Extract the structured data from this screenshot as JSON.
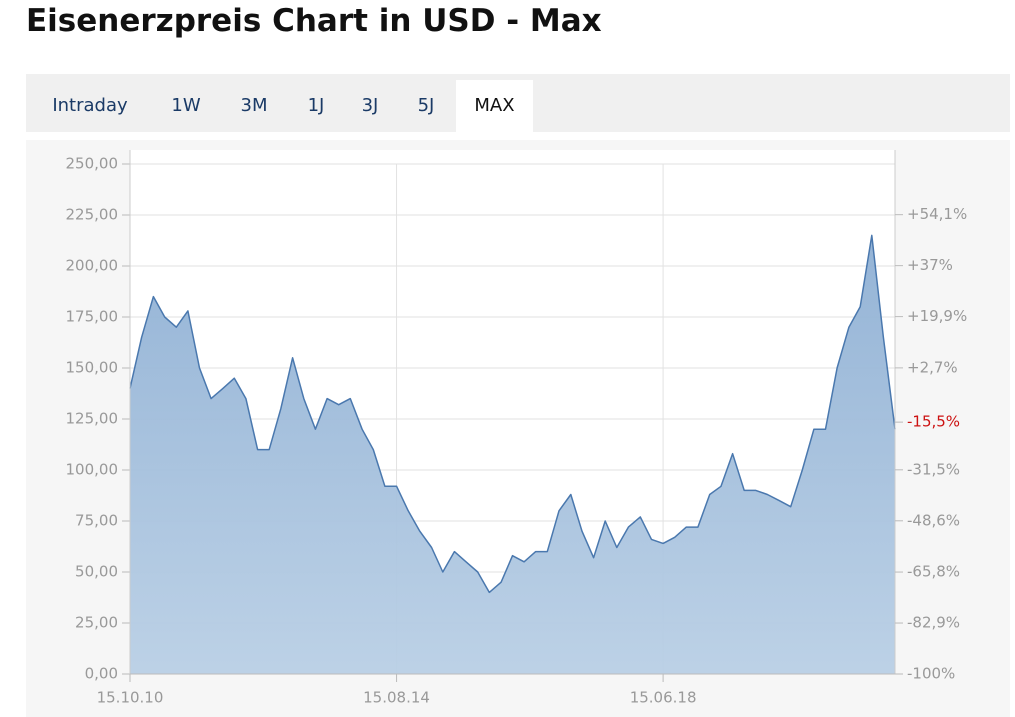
{
  "title": "Eisenerzpreis Chart in USD - Max",
  "tabs": [
    "Intraday",
    "1W",
    "3M",
    "1J",
    "3J",
    "5J",
    "MAX"
  ],
  "active_tab": 6,
  "chart_data": {
    "type": "area",
    "x": [
      "2010-10-15",
      "2010-12-15",
      "2011-02-15",
      "2011-04-15",
      "2011-06-15",
      "2011-08-15",
      "2011-10-15",
      "2011-12-15",
      "2012-02-15",
      "2012-04-15",
      "2012-06-15",
      "2012-08-15",
      "2012-10-15",
      "2012-12-15",
      "2013-02-15",
      "2013-04-15",
      "2013-06-15",
      "2013-08-15",
      "2013-10-15",
      "2013-12-15",
      "2014-02-15",
      "2014-04-15",
      "2014-06-15",
      "2014-08-15",
      "2014-10-15",
      "2014-12-15",
      "2015-02-15",
      "2015-04-15",
      "2015-06-15",
      "2015-08-15",
      "2015-10-15",
      "2015-12-15",
      "2016-02-15",
      "2016-04-15",
      "2016-06-15",
      "2016-08-15",
      "2016-10-15",
      "2016-12-15",
      "2017-02-15",
      "2017-04-15",
      "2017-06-15",
      "2017-08-15",
      "2017-10-15",
      "2017-12-15",
      "2018-02-15",
      "2018-04-15",
      "2018-06-15",
      "2018-08-15",
      "2018-10-15",
      "2018-12-15",
      "2019-02-15",
      "2019-04-15",
      "2019-06-15",
      "2019-08-15",
      "2019-10-15",
      "2019-12-15",
      "2020-02-15",
      "2020-04-15",
      "2020-06-15",
      "2020-08-15",
      "2020-10-15",
      "2020-12-15",
      "2021-02-15",
      "2021-04-15",
      "2021-06-15",
      "2021-08-15",
      "2021-10-15"
    ],
    "series": [
      {
        "color": "#4a78ae",
        "fill": "#a9c3df",
        "values": [
          140,
          165,
          185,
          175,
          170,
          178,
          150,
          135,
          140,
          145,
          135,
          110,
          110,
          130,
          155,
          135,
          120,
          135,
          132,
          135,
          120,
          110,
          92,
          92,
          80,
          70,
          62,
          50,
          60,
          55,
          50,
          40,
          45,
          58,
          55,
          60,
          60,
          80,
          88,
          70,
          57,
          75,
          62,
          72,
          77,
          66,
          64,
          67,
          72,
          72,
          88,
          92,
          108,
          90,
          90,
          88,
          85,
          82,
          100,
          120,
          120,
          150,
          170,
          180,
          215,
          165,
          120
        ]
      }
    ],
    "xlim": [
      "2010-10-15",
      "2021-10-15"
    ],
    "xticks": [
      {
        "value": "2010-10-15",
        "label": "15.10.10"
      },
      {
        "value": "2014-08-15",
        "label": "15.08.14"
      },
      {
        "value": "2018-06-15",
        "label": "15.06.18"
      }
    ],
    "ylim": [
      0,
      250
    ],
    "yticks": [
      {
        "value": 0,
        "label": "0,00"
      },
      {
        "value": 25,
        "label": "25,00"
      },
      {
        "value": 50,
        "label": "50,00"
      },
      {
        "value": 75,
        "label": "75,00"
      },
      {
        "value": 100,
        "label": "100,00"
      },
      {
        "value": 125,
        "label": "125,00"
      },
      {
        "value": 150,
        "label": "150,00"
      },
      {
        "value": 175,
        "label": "175,00"
      },
      {
        "value": 200,
        "label": "200,00"
      },
      {
        "value": 225,
        "label": "225,00"
      },
      {
        "value": 250,
        "label": "250,00"
      }
    ],
    "y2lim": [
      -100,
      71.1
    ],
    "y2ticks": [
      {
        "value": -100,
        "label": "-100%"
      },
      {
        "value": -82.9,
        "label": "-82,9%"
      },
      {
        "value": -65.8,
        "label": "-65,8%"
      },
      {
        "value": -48.6,
        "label": "-48,6%"
      },
      {
        "value": -31.5,
        "label": "-31,5%"
      },
      {
        "value": -15.5,
        "label": "-15,5%",
        "color": "#cc1111"
      },
      {
        "value": 2.7,
        "label": "+2,7%"
      },
      {
        "value": 19.9,
        "label": "+19,9%"
      },
      {
        "value": 37,
        "label": "+37%"
      },
      {
        "value": 54.1,
        "label": "+54,1%"
      }
    ],
    "grid": true
  }
}
